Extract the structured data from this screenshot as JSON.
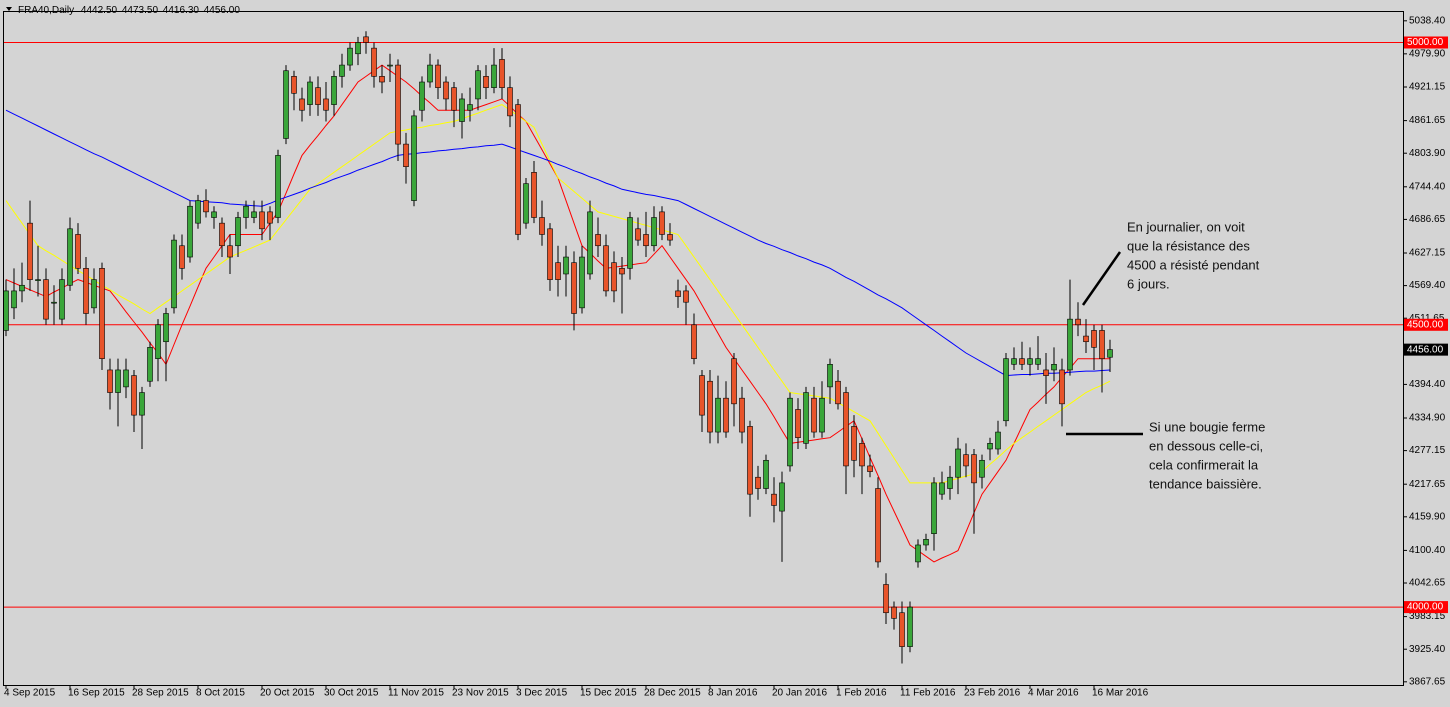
{
  "chart_data": {
    "type": "candlestick",
    "title": "FRA40,Daily",
    "quote_labels": [
      "4442.50",
      "4473.50",
      "4416.30",
      "4456.00"
    ],
    "categories": [
      "4 Sep 2015",
      null,
      null,
      null,
      null,
      null,
      null,
      null,
      "16 Sep 2015",
      null,
      null,
      null,
      null,
      null,
      null,
      null,
      "28 Sep 2015",
      null,
      null,
      null,
      null,
      null,
      null,
      null,
      "8 Oct 2015",
      null,
      null,
      null,
      null,
      null,
      null,
      null,
      "20 Oct 2015",
      null,
      null,
      null,
      null,
      null,
      null,
      null,
      "30 Oct 2015",
      null,
      null,
      null,
      null,
      null,
      null,
      null,
      "11 Nov 2015",
      null,
      null,
      null,
      null,
      null,
      null,
      null,
      "23 Nov 2015",
      null,
      null,
      null,
      null,
      null,
      null,
      null,
      "3 Dec 2015",
      null,
      null,
      null,
      null,
      null,
      null,
      null,
      "15 Dec 2015",
      null,
      null,
      null,
      null,
      null,
      null,
      null,
      "28 Dec 2015",
      null,
      null,
      null,
      null,
      null,
      null,
      null,
      "8 Jan 2016",
      null,
      null,
      null,
      null,
      null,
      null,
      null,
      "20 Jan 2016",
      null,
      null,
      null,
      null,
      null,
      null,
      null,
      "1 Feb 2016",
      null,
      null,
      null,
      null,
      null,
      null,
      null,
      "11 Feb 2016",
      null,
      null,
      null,
      null,
      null,
      null,
      null,
      "23 Feb 2016",
      null,
      null,
      null,
      null,
      null,
      null,
      null,
      "4 Mar 2016",
      null,
      null,
      null,
      null,
      null,
      null,
      null,
      "16 Mar 2016",
      null,
      null
    ],
    "open": [
      4490,
      4530,
      4560,
      4680,
      4580,
      4580,
      4540,
      4510,
      4570,
      4660,
      4600,
      4530,
      4600,
      4420,
      4380,
      4390,
      4410,
      4340,
      4400,
      4440,
      4470,
      4530,
      4640,
      4620,
      4680,
      4720,
      4690,
      4680,
      4640,
      4640,
      4690,
      4690,
      4700,
      4700,
      4690,
      4830,
      4940,
      4900,
      4890,
      4920,
      4900,
      4890,
      4940,
      4960,
      4980,
      5010,
      4990,
      4940,
      4960,
      4960,
      4820,
      4720,
      4880,
      4930,
      4960,
      4930,
      4920,
      4860,
      4880,
      4900,
      4940,
      4920,
      4970,
      4920,
      4890,
      4680,
      4770,
      4690,
      4670,
      4610,
      4590,
      4610,
      4530,
      4590,
      4660,
      4640,
      4610,
      4600,
      4600,
      4670,
      4660,
      4640,
      4700,
      4660,
      4560,
      4560,
      4500,
      4410,
      4400,
      4310,
      4370,
      4440,
      4370,
      4320,
      4230,
      4210,
      4200,
      4170,
      4250,
      4350,
      4290,
      4370,
      4310,
      4390,
      4400,
      4380,
      4320,
      4290,
      4250,
      4210,
      4040,
      4000,
      3990,
      3930,
      4080,
      4110,
      4130,
      4200,
      4210,
      4230,
      4270,
      4270,
      4230,
      4280,
      4280,
      4330,
      4430,
      4440,
      4430,
      4430,
      4420,
      4420,
      4420,
      4420,
      4510,
      4480,
      4490,
      4490,
      4442.5
    ],
    "high": [
      4580,
      4600,
      4610,
      4720,
      4640,
      4600,
      4570,
      4600,
      4690,
      4680,
      4620,
      4600,
      4610,
      4440,
      4440,
      4440,
      4420,
      4390,
      4470,
      4510,
      4530,
      4660,
      4660,
      4720,
      4730,
      4740,
      4710,
      4690,
      4660,
      4700,
      4720,
      4720,
      4720,
      4710,
      4810,
      4960,
      4950,
      4920,
      4940,
      4940,
      4930,
      4950,
      4980,
      5000,
      5010,
      5020,
      5000,
      4960,
      4980,
      4970,
      4840,
      4880,
      4940,
      4980,
      4970,
      4940,
      4930,
      4910,
      4920,
      4960,
      4960,
      4990,
      4990,
      4940,
      4900,
      4760,
      4790,
      4720,
      4680,
      4640,
      4640,
      4630,
      4640,
      4720,
      4690,
      4660,
      4630,
      4620,
      4700,
      4690,
      4700,
      4710,
      4710,
      4680,
      4580,
      4570,
      4520,
      4420,
      4420,
      4410,
      4400,
      4450,
      4390,
      4330,
      4250,
      4270,
      4230,
      4240,
      4380,
      4370,
      4390,
      4390,
      4400,
      4440,
      4420,
      4390,
      4340,
      4300,
      4270,
      4230,
      4060,
      4010,
      4010,
      4010,
      4120,
      4130,
      4230,
      4240,
      4250,
      4300,
      4290,
      4280,
      4270,
      4300,
      4330,
      4450,
      4460,
      4470,
      4460,
      4480,
      4450,
      4460,
      4440,
      4580,
      4540,
      4510,
      4500,
      4500,
      4473.5
    ],
    "low": [
      4480,
      4510,
      4540,
      4560,
      4550,
      4500,
      4500,
      4500,
      4560,
      4590,
      4500,
      4520,
      4420,
      4350,
      4320,
      4370,
      4310,
      4280,
      4390,
      4400,
      4400,
      4520,
      4580,
      4610,
      4670,
      4690,
      4670,
      4620,
      4590,
      4620,
      4670,
      4680,
      4650,
      4650,
      4680,
      4820,
      4880,
      4860,
      4870,
      4870,
      4860,
      4870,
      4920,
      4950,
      4960,
      4980,
      4920,
      4910,
      4930,
      4790,
      4750,
      4710,
      4860,
      4920,
      4900,
      4880,
      4850,
      4830,
      4860,
      4880,
      4900,
      4910,
      4900,
      4850,
      4650,
      4670,
      4680,
      4640,
      4560,
      4550,
      4550,
      4490,
      4520,
      4580,
      4620,
      4550,
      4540,
      4520,
      4580,
      4640,
      4620,
      4630,
      4650,
      4640,
      4530,
      4500,
      4430,
      4310,
      4290,
      4290,
      4300,
      4320,
      4290,
      4160,
      4190,
      4200,
      4150,
      4080,
      4240,
      4280,
      4280,
      4300,
      4300,
      4360,
      4350,
      4200,
      4230,
      4200,
      4230,
      4070,
      3970,
      3960,
      3900,
      3920,
      4070,
      4100,
      4100,
      4190,
      4190,
      4200,
      4230,
      4130,
      4210,
      4260,
      4270,
      4320,
      4420,
      4420,
      4410,
      4420,
      4360,
      4400,
      4320,
      4410,
      4480,
      4450,
      4420,
      4380,
      4416.3
    ],
    "close": [
      4560,
      4560,
      4570,
      4580,
      4580,
      4510,
      4540,
      4580,
      4670,
      4600,
      4520,
      4580,
      4440,
      4380,
      4420,
      4420,
      4340,
      4380,
      4460,
      4500,
      4520,
      4650,
      4600,
      4710,
      4720,
      4700,
      4700,
      4640,
      4620,
      4690,
      4710,
      4700,
      4670,
      4680,
      4800,
      4950,
      4910,
      4880,
      4930,
      4890,
      4880,
      4940,
      4960,
      4990,
      5000,
      5000,
      4940,
      4930,
      4960,
      4820,
      4780,
      4870,
      4930,
      4960,
      4920,
      4900,
      4880,
      4900,
      4890,
      4950,
      4920,
      4960,
      4920,
      4870,
      4660,
      4750,
      4690,
      4660,
      4580,
      4580,
      4620,
      4520,
      4620,
      4700,
      4640,
      4560,
      4560,
      4590,
      4690,
      4650,
      4640,
      4690,
      4660,
      4650,
      4550,
      4540,
      4440,
      4340,
      4310,
      4370,
      4310,
      4360,
      4310,
      4200,
      4210,
      4260,
      4180,
      4220,
      4370,
      4300,
      4380,
      4310,
      4370,
      4430,
      4360,
      4250,
      4260,
      4250,
      4240,
      4080,
      3990,
      3980,
      3930,
      4000,
      4110,
      4120,
      4220,
      4220,
      4230,
      4280,
      4250,
      4220,
      4260,
      4290,
      4310,
      4440,
      4440,
      4430,
      4440,
      4440,
      4410,
      4430,
      4360,
      4510,
      4500,
      4470,
      4460,
      4440,
      4456
    ],
    "up_color": "#3aa63a",
    "down_color": "#e8542a",
    "overlays": [
      {
        "color": "#ff0000",
        "values": [
          4580,
          4574,
          4568,
          4562,
          4556,
          4550,
          4558,
          4565,
          4573,
          4580,
          4575,
          4570,
          4565,
          4560,
          4542,
          4523,
          4505,
          4487,
          4468,
          4450,
          4430,
          4465,
          4500,
          4533,
          4567,
          4600,
          4620,
          4640,
          4660,
          4660,
          4660,
          4660,
          4660,
          4680,
          4700,
          4733,
          4767,
          4800,
          4818,
          4835,
          4853,
          4870,
          4890,
          4910,
          4930,
          4940,
          4950,
          4960,
          4950,
          4940,
          4930,
          4918,
          4905,
          4893,
          4880,
          4880,
          4880,
          4880,
          4880,
          4885,
          4890,
          4895,
          4900,
          4887,
          4873,
          4860,
          4835,
          4810,
          4785,
          4760,
          4720,
          4680,
          4640,
          4627,
          4613,
          4600,
          4602,
          4604,
          4606,
          4608,
          4610,
          4625,
          4640,
          4620,
          4600,
          4580,
          4560,
          4535,
          4510,
          4485,
          4460,
          4440,
          4420,
          4400,
          4380,
          4360,
          4337,
          4313,
          4290,
          4292,
          4294,
          4296,
          4298,
          4300,
          4310,
          4320,
          4330,
          4298,
          4265,
          4233,
          4200,
          4170,
          4140,
          4110,
          4100,
          4090,
          4080,
          4087,
          4093,
          4100,
          4133,
          4167,
          4200,
          4220,
          4240,
          4260,
          4290,
          4320,
          4350,
          4363,
          4377,
          4390,
          4407,
          4423,
          4440,
          4440,
          4440,
          4440,
          4440
        ]
      },
      {
        "color": "#ffff00",
        "values": [
          4720,
          4700,
          4680,
          4660,
          4640,
          4631,
          4623,
          4614,
          4605,
          4596,
          4588,
          4579,
          4570,
          4562,
          4553,
          4545,
          4537,
          4528,
          4520,
          4530,
          4540,
          4550,
          4560,
          4570,
          4580,
          4590,
          4600,
          4610,
          4620,
          4626,
          4632,
          4638,
          4644,
          4650,
          4668,
          4686,
          4704,
          4722,
          4740,
          4750,
          4760,
          4770,
          4780,
          4790,
          4800,
          4810,
          4820,
          4830,
          4840,
          4843,
          4845,
          4848,
          4850,
          4853,
          4855,
          4858,
          4860,
          4865,
          4870,
          4875,
          4880,
          4885,
          4890,
          4880,
          4870,
          4860,
          4850,
          4820,
          4790,
          4760,
          4748,
          4736,
          4724,
          4712,
          4700,
          4696,
          4692,
          4688,
          4684,
          4680,
          4676,
          4672,
          4668,
          4664,
          4660,
          4640,
          4620,
          4600,
          4580,
          4560,
          4540,
          4520,
          4500,
          4480,
          4460,
          4440,
          4420,
          4400,
          4380,
          4378,
          4376,
          4374,
          4372,
          4370,
          4362,
          4354,
          4346,
          4338,
          4330,
          4308,
          4286,
          4264,
          4242,
          4220,
          4220,
          4220,
          4220,
          4220,
          4224,
          4228,
          4232,
          4236,
          4240,
          4253,
          4265,
          4278,
          4290,
          4300,
          4310,
          4320,
          4330,
          4340,
          4350,
          4360,
          4370,
          4380,
          4387,
          4393,
          4400
        ]
      },
      {
        "color": "#0000ff",
        "values": [
          4880,
          4873,
          4866,
          4859,
          4852,
          4845,
          4838,
          4831,
          4824,
          4817,
          4810,
          4803,
          4797,
          4790,
          4783,
          4776,
          4769,
          4762,
          4755,
          4748,
          4741,
          4734,
          4727,
          4720,
          4719,
          4718,
          4717,
          4716,
          4714,
          4713,
          4712,
          4711,
          4710,
          4715,
          4721,
          4726,
          4731,
          4736,
          4742,
          4747,
          4752,
          4758,
          4763,
          4768,
          4774,
          4779,
          4784,
          4789,
          4795,
          4800,
          4802,
          4803,
          4805,
          4806,
          4808,
          4809,
          4811,
          4812,
          4814,
          4815,
          4817,
          4818,
          4820,
          4815,
          4810,
          4805,
          4800,
          4795,
          4790,
          4784,
          4779,
          4773,
          4768,
          4762,
          4757,
          4751,
          4746,
          4740,
          4737,
          4734,
          4731,
          4729,
          4726,
          4723,
          4720,
          4713,
          4706,
          4699,
          4692,
          4685,
          4678,
          4671,
          4664,
          4657,
          4650,
          4644,
          4639,
          4633,
          4628,
          4622,
          4617,
          4611,
          4606,
          4600,
          4592,
          4584,
          4577,
          4569,
          4561,
          4553,
          4546,
          4538,
          4530,
          4520,
          4510,
          4500,
          4490,
          4480,
          4470,
          4460,
          4450,
          4442,
          4434,
          4426,
          4418,
          4410,
          4411,
          4412,
          4412,
          4413,
          4414,
          4414,
          4415,
          4416,
          4417,
          4418,
          4418,
          4419,
          4420
        ]
      }
    ],
    "ylim": [
      3862,
      5054
    ],
    "yticks": [
      {
        "value": 5038.4,
        "label": "5038.40"
      },
      {
        "value": 4979.9,
        "label": "4979.90"
      },
      {
        "value": 4921.15,
        "label": "4921.15"
      },
      {
        "value": 4861.65,
        "label": "4861.65"
      },
      {
        "value": 4803.9,
        "label": "4803.90"
      },
      {
        "value": 4744.4,
        "label": "4744.40"
      },
      {
        "value": 4686.65,
        "label": "4686.65"
      },
      {
        "value": 4627.15,
        "label": "4627.15"
      },
      {
        "value": 4569.4,
        "label": "4569.40"
      },
      {
        "value": 4511.65,
        "label": "4511.65"
      },
      {
        "value": 4394.4,
        "label": "4394.40"
      },
      {
        "value": 4334.9,
        "label": "4334.90"
      },
      {
        "value": 4277.15,
        "label": "4277.15"
      },
      {
        "value": 4217.65,
        "label": "4217.65"
      },
      {
        "value": 4159.9,
        "label": "4159.90"
      },
      {
        "value": 4100.4,
        "label": "4100.40"
      },
      {
        "value": 4042.65,
        "label": "4042.65"
      },
      {
        "value": 3983.15,
        "label": "3983.15"
      },
      {
        "value": 3925.4,
        "label": "3925.40"
      },
      {
        "value": 3867.65,
        "label": "3867.65"
      }
    ],
    "levels": [
      {
        "value": 5000,
        "label": "5000.00",
        "color": "#ff0000"
      },
      {
        "value": 4500,
        "label": "4500.00",
        "color": "#ff0000"
      },
      {
        "value": 4000,
        "label": "4000.00",
        "color": "#ff0000"
      }
    ],
    "current_price": {
      "value": 4456,
      "label": "4456.00"
    },
    "annotations": [
      {
        "lines": [
          "En journalier, on voit",
          "que la résistance des",
          "4500 a résisté pendant",
          "6 jours."
        ]
      },
      {
        "lines": [
          "Si une bougie ferme",
          "en dessous celle-ci,",
          "cela confirmerait la",
          "tendance baissière."
        ]
      }
    ]
  }
}
